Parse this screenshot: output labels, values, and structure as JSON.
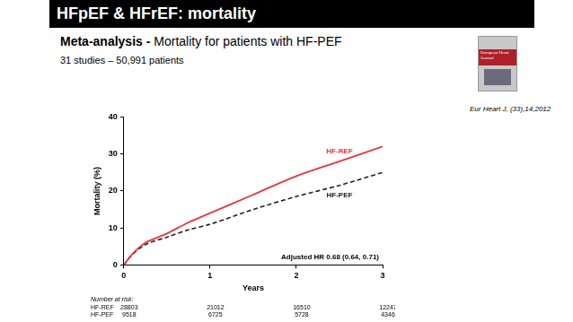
{
  "slide": {
    "title": "HFpEF & HFrEF: mortality",
    "subtitle_bold": "Meta-analysis -",
    "subtitle": "Mortality for patients with HF-PEF",
    "note": "31 studies – 50,991 patients",
    "citation": "Eur Heart J, (33),14,2012",
    "journal_cover": "European Heart Journal"
  },
  "chart_data": {
    "type": "line",
    "x": [
      0,
      0.1,
      0.25,
      0.5,
      0.75,
      1,
      1.5,
      2,
      2.5,
      3
    ],
    "series": [
      {
        "name": "HF-REF",
        "color": "#e8363c",
        "line_style": "solid",
        "values": [
          0,
          3,
          6,
          8.5,
          11.5,
          14,
          19,
          24,
          28,
          32
        ]
      },
      {
        "name": "HF-PEF",
        "color": "#222222",
        "line_style": "dashed",
        "values": [
          0,
          2.8,
          5.5,
          7.5,
          9.5,
          11,
          15,
          18.5,
          21.5,
          25
        ]
      }
    ],
    "x_label": "Years",
    "y_label": "Mortality (%)",
    "xlim": [
      0,
      3
    ],
    "xticks": [
      0,
      1,
      2,
      3
    ],
    "ylim": [
      0,
      40
    ],
    "yticks": [
      0,
      10,
      20,
      30,
      40
    ],
    "grid": false,
    "annotations": [
      "Adjusted HR 0.68 (0.64, 0.71)"
    ],
    "number_at_risk": {
      "title": "Number at risk:",
      "series": [
        {
          "name": "HF-REF",
          "values": [
            28803,
            21012,
            16510,
            12247
          ]
        },
        {
          "name": "HF-PEF",
          "values": [
            9518,
            6725,
            5728,
            4346
          ]
        }
      ]
    }
  }
}
